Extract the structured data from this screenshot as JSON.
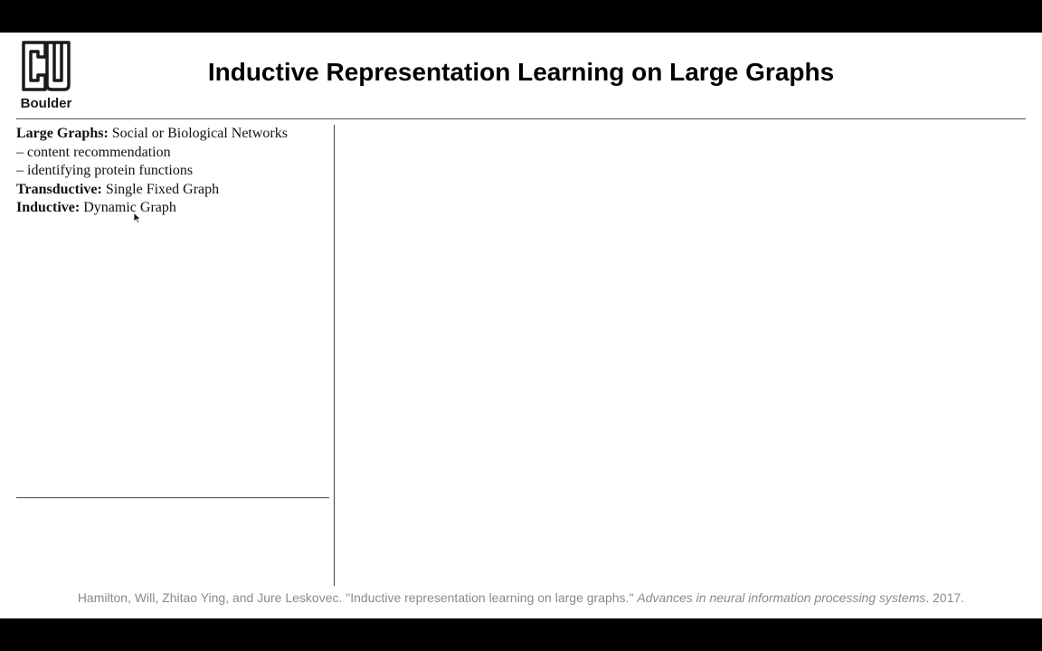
{
  "logo": {
    "icon": "cu-boulder-logo-icon",
    "word": "Boulder"
  },
  "slide": {
    "title": "Inductive Representation Learning on Large Graphs",
    "items": [
      {
        "term": "Large Graphs:",
        "text": " Social or Biological Networks"
      },
      {
        "term": "",
        "text": "– content recommendation"
      },
      {
        "term": "",
        "text": "– identifying protein functions"
      },
      {
        "term": "Transductive:",
        "text": " Single Fixed Graph"
      },
      {
        "term": "Inductive:",
        "text": " Dynamic Graph"
      }
    ]
  },
  "citation": {
    "authors": "Hamilton, Will, Zhitao Ying, and Jure Leskovec. \"Inductive representation learning on large graphs.\" ",
    "venue": "Advances in neural information processing systems",
    "year": ". 2017."
  },
  "colors": {
    "letterbox": "#000000",
    "slide_background": "#ffffff",
    "citation_text": "#8a8a8a"
  }
}
